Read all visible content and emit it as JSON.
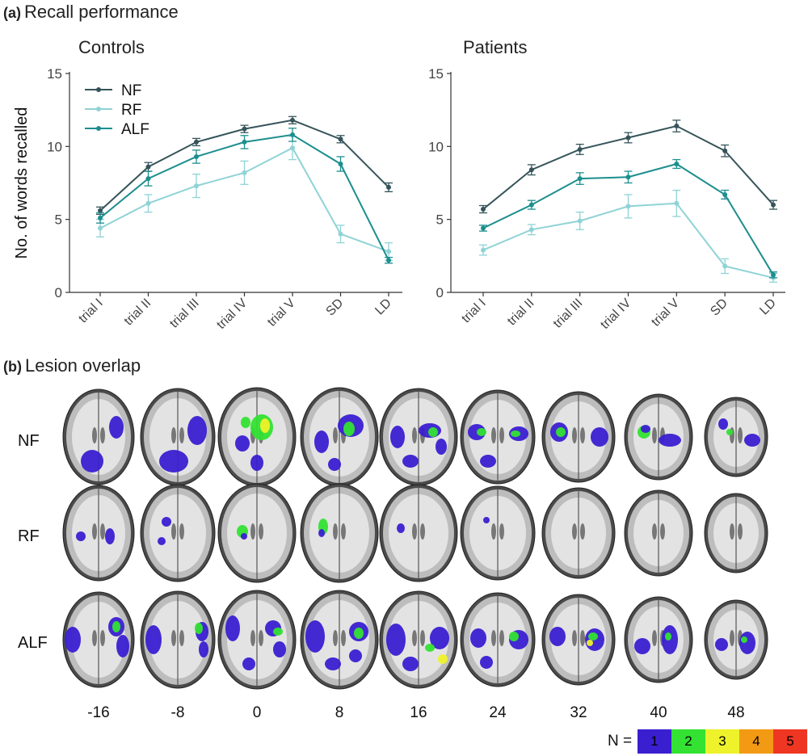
{
  "panel_a": {
    "tag": "(a)",
    "title": "Recall performance"
  },
  "panel_b": {
    "tag": "(b)",
    "title": "Lesion overlap"
  },
  "chart_data": [
    {
      "type": "line",
      "title": "Controls",
      "ylabel": "No. of words recalled",
      "xlabel": "",
      "categories": [
        "trial I",
        "trial II",
        "trial III",
        "trial IV",
        "trial V",
        "SD",
        "LD"
      ],
      "ylim": [
        0,
        15
      ],
      "yticks": [
        0,
        5,
        10,
        15
      ],
      "grid": false,
      "legend": "top-left",
      "series": [
        {
          "name": "NF",
          "color": "#35545a",
          "values": [
            5.6,
            8.6,
            10.3,
            11.2,
            11.8,
            10.5,
            7.2
          ],
          "err": [
            0.25,
            0.3,
            0.25,
            0.25,
            0.25,
            0.25,
            0.3
          ]
        },
        {
          "name": "RF",
          "color": "#8fd3d6",
          "values": [
            4.4,
            6.1,
            7.3,
            8.2,
            9.9,
            4.0,
            2.8
          ],
          "err": [
            0.6,
            0.6,
            0.8,
            0.8,
            0.8,
            0.6,
            0.6
          ]
        },
        {
          "name": "ALF",
          "color": "#1d8e8e",
          "values": [
            5.1,
            7.8,
            9.3,
            10.3,
            10.8,
            8.8,
            2.2
          ],
          "err": [
            0.35,
            0.5,
            0.45,
            0.45,
            0.45,
            0.5,
            0.2
          ]
        }
      ]
    },
    {
      "type": "line",
      "title": "Patients",
      "ylabel": "",
      "xlabel": "",
      "categories": [
        "trial I",
        "trial II",
        "trial III",
        "trial IV",
        "trial V",
        "SD",
        "LD"
      ],
      "ylim": [
        0,
        15
      ],
      "yticks": [
        0,
        5,
        10,
        15
      ],
      "grid": false,
      "legend": "none",
      "series": [
        {
          "name": "NF",
          "color": "#35545a",
          "values": [
            5.7,
            8.4,
            9.8,
            10.6,
            11.4,
            9.7,
            6.0
          ],
          "err": [
            0.25,
            0.35,
            0.35,
            0.35,
            0.4,
            0.4,
            0.3
          ]
        },
        {
          "name": "RF",
          "color": "#8fd3d6",
          "values": [
            2.9,
            4.3,
            4.9,
            5.9,
            6.1,
            1.8,
            1.0
          ],
          "err": [
            0.35,
            0.35,
            0.6,
            0.8,
            0.9,
            0.5,
            0.3
          ]
        },
        {
          "name": "ALF",
          "color": "#1d8e8e",
          "values": [
            4.4,
            6.0,
            7.8,
            7.9,
            8.8,
            6.7,
            1.2
          ],
          "err": [
            0.2,
            0.3,
            0.4,
            0.4,
            0.3,
            0.3,
            0.2
          ]
        }
      ]
    }
  ],
  "lesion": {
    "rows": [
      "NF",
      "RF",
      "ALF"
    ],
    "slices": [
      "-16",
      "-8",
      "0",
      "8",
      "16",
      "24",
      "32",
      "40",
      "48"
    ],
    "legend_prefix": "N =",
    "legend_levels": [
      "1",
      "2",
      "3",
      "4",
      "5"
    ],
    "legend_colors": [
      "#3a1fd1",
      "#33e233",
      "#eef22a",
      "#f39a14",
      "#ee3622"
    ]
  }
}
